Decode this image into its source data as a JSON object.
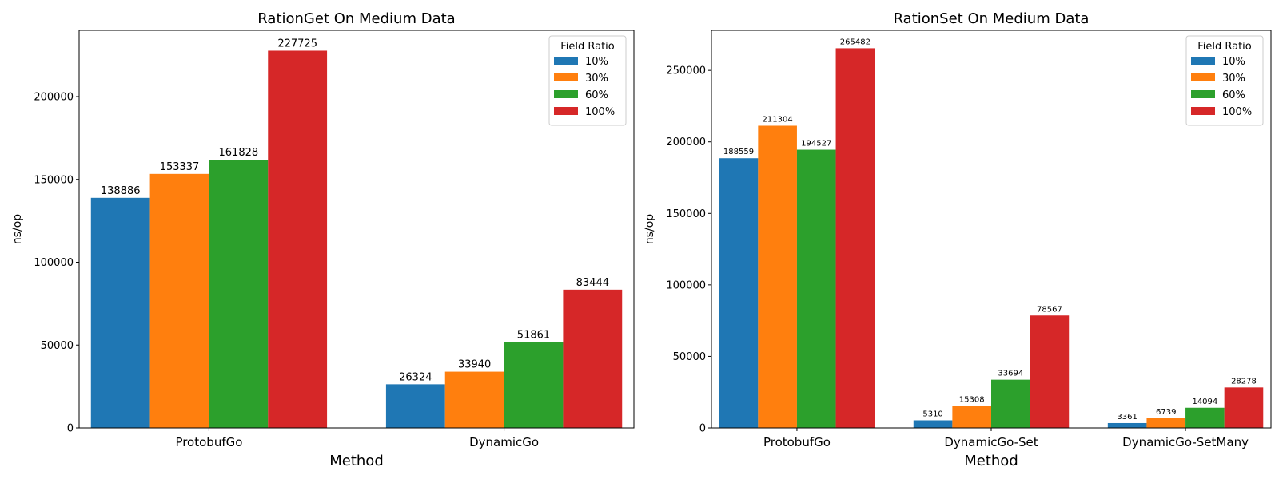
{
  "chart_data": [
    {
      "type": "bar",
      "title": "RationGet On Medium Data",
      "xlabel": "Method",
      "ylabel": "ns/op",
      "categories": [
        "ProtobufGo",
        "DynamicGo"
      ],
      "series": [
        {
          "name": "10%",
          "color": "#1f77b4",
          "values": [
            138886,
            26324
          ]
        },
        {
          "name": "30%",
          "color": "#ff7f0e",
          "values": [
            153337,
            33940
          ]
        },
        {
          "name": "60%",
          "color": "#2ca02c",
          "values": [
            161828,
            51861
          ]
        },
        {
          "name": "100%",
          "color": "#d62728",
          "values": [
            227725,
            83444
          ]
        }
      ],
      "ylim": [
        0,
        240000
      ],
      "yticks": [
        0,
        50000,
        100000,
        150000,
        200000
      ],
      "legend_title": "Field Ratio",
      "legend_position": "top-right",
      "grid": false
    },
    {
      "type": "bar",
      "title": "RationSet On Medium Data",
      "xlabel": "Method",
      "ylabel": "ns/op",
      "categories": [
        "ProtobufGo",
        "DynamicGo-Set",
        "DynamicGo-SetMany"
      ],
      "series": [
        {
          "name": "10%",
          "color": "#1f77b4",
          "values": [
            188559,
            5310,
            3361
          ]
        },
        {
          "name": "30%",
          "color": "#ff7f0e",
          "values": [
            211304,
            15308,
            6739
          ]
        },
        {
          "name": "60%",
          "color": "#2ca02c",
          "values": [
            194527,
            33694,
            14094
          ]
        },
        {
          "name": "100%",
          "color": "#d62728",
          "values": [
            265482,
            78567,
            28278
          ]
        }
      ],
      "ylim": [
        0,
        278000
      ],
      "yticks": [
        0,
        50000,
        100000,
        150000,
        200000,
        250000
      ],
      "legend_title": "Field Ratio",
      "legend_position": "top-right",
      "grid": false
    }
  ]
}
